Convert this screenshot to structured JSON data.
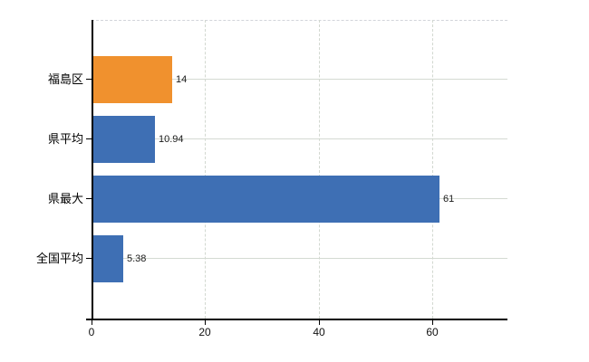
{
  "chart_data": {
    "type": "bar",
    "orientation": "horizontal",
    "title": "",
    "xlabel": "",
    "ylabel": "",
    "legend": "none",
    "grid": "on",
    "categories": [
      "福島区",
      "県平均",
      "県最大",
      "全国平均"
    ],
    "values": [
      14,
      10.94,
      61,
      5.38
    ],
    "value_labels": [
      "14",
      "10.94",
      "61",
      "5.38"
    ],
    "bar_colors": [
      "#f0912e",
      "#3e6fb4",
      "#3e6fb4",
      "#3e6fb4"
    ],
    "x_ticks": [
      0,
      20,
      40,
      60
    ],
    "x_tick_labels": [
      "0",
      "20",
      "40",
      "60"
    ],
    "xlim": [
      0,
      73.2
    ],
    "colors": {
      "highlight_bar": "#f0912e",
      "default_bar": "#3e6fb4",
      "gridline": "#d4dad2",
      "axis": "#000000",
      "text": "#1a1a1a"
    }
  }
}
